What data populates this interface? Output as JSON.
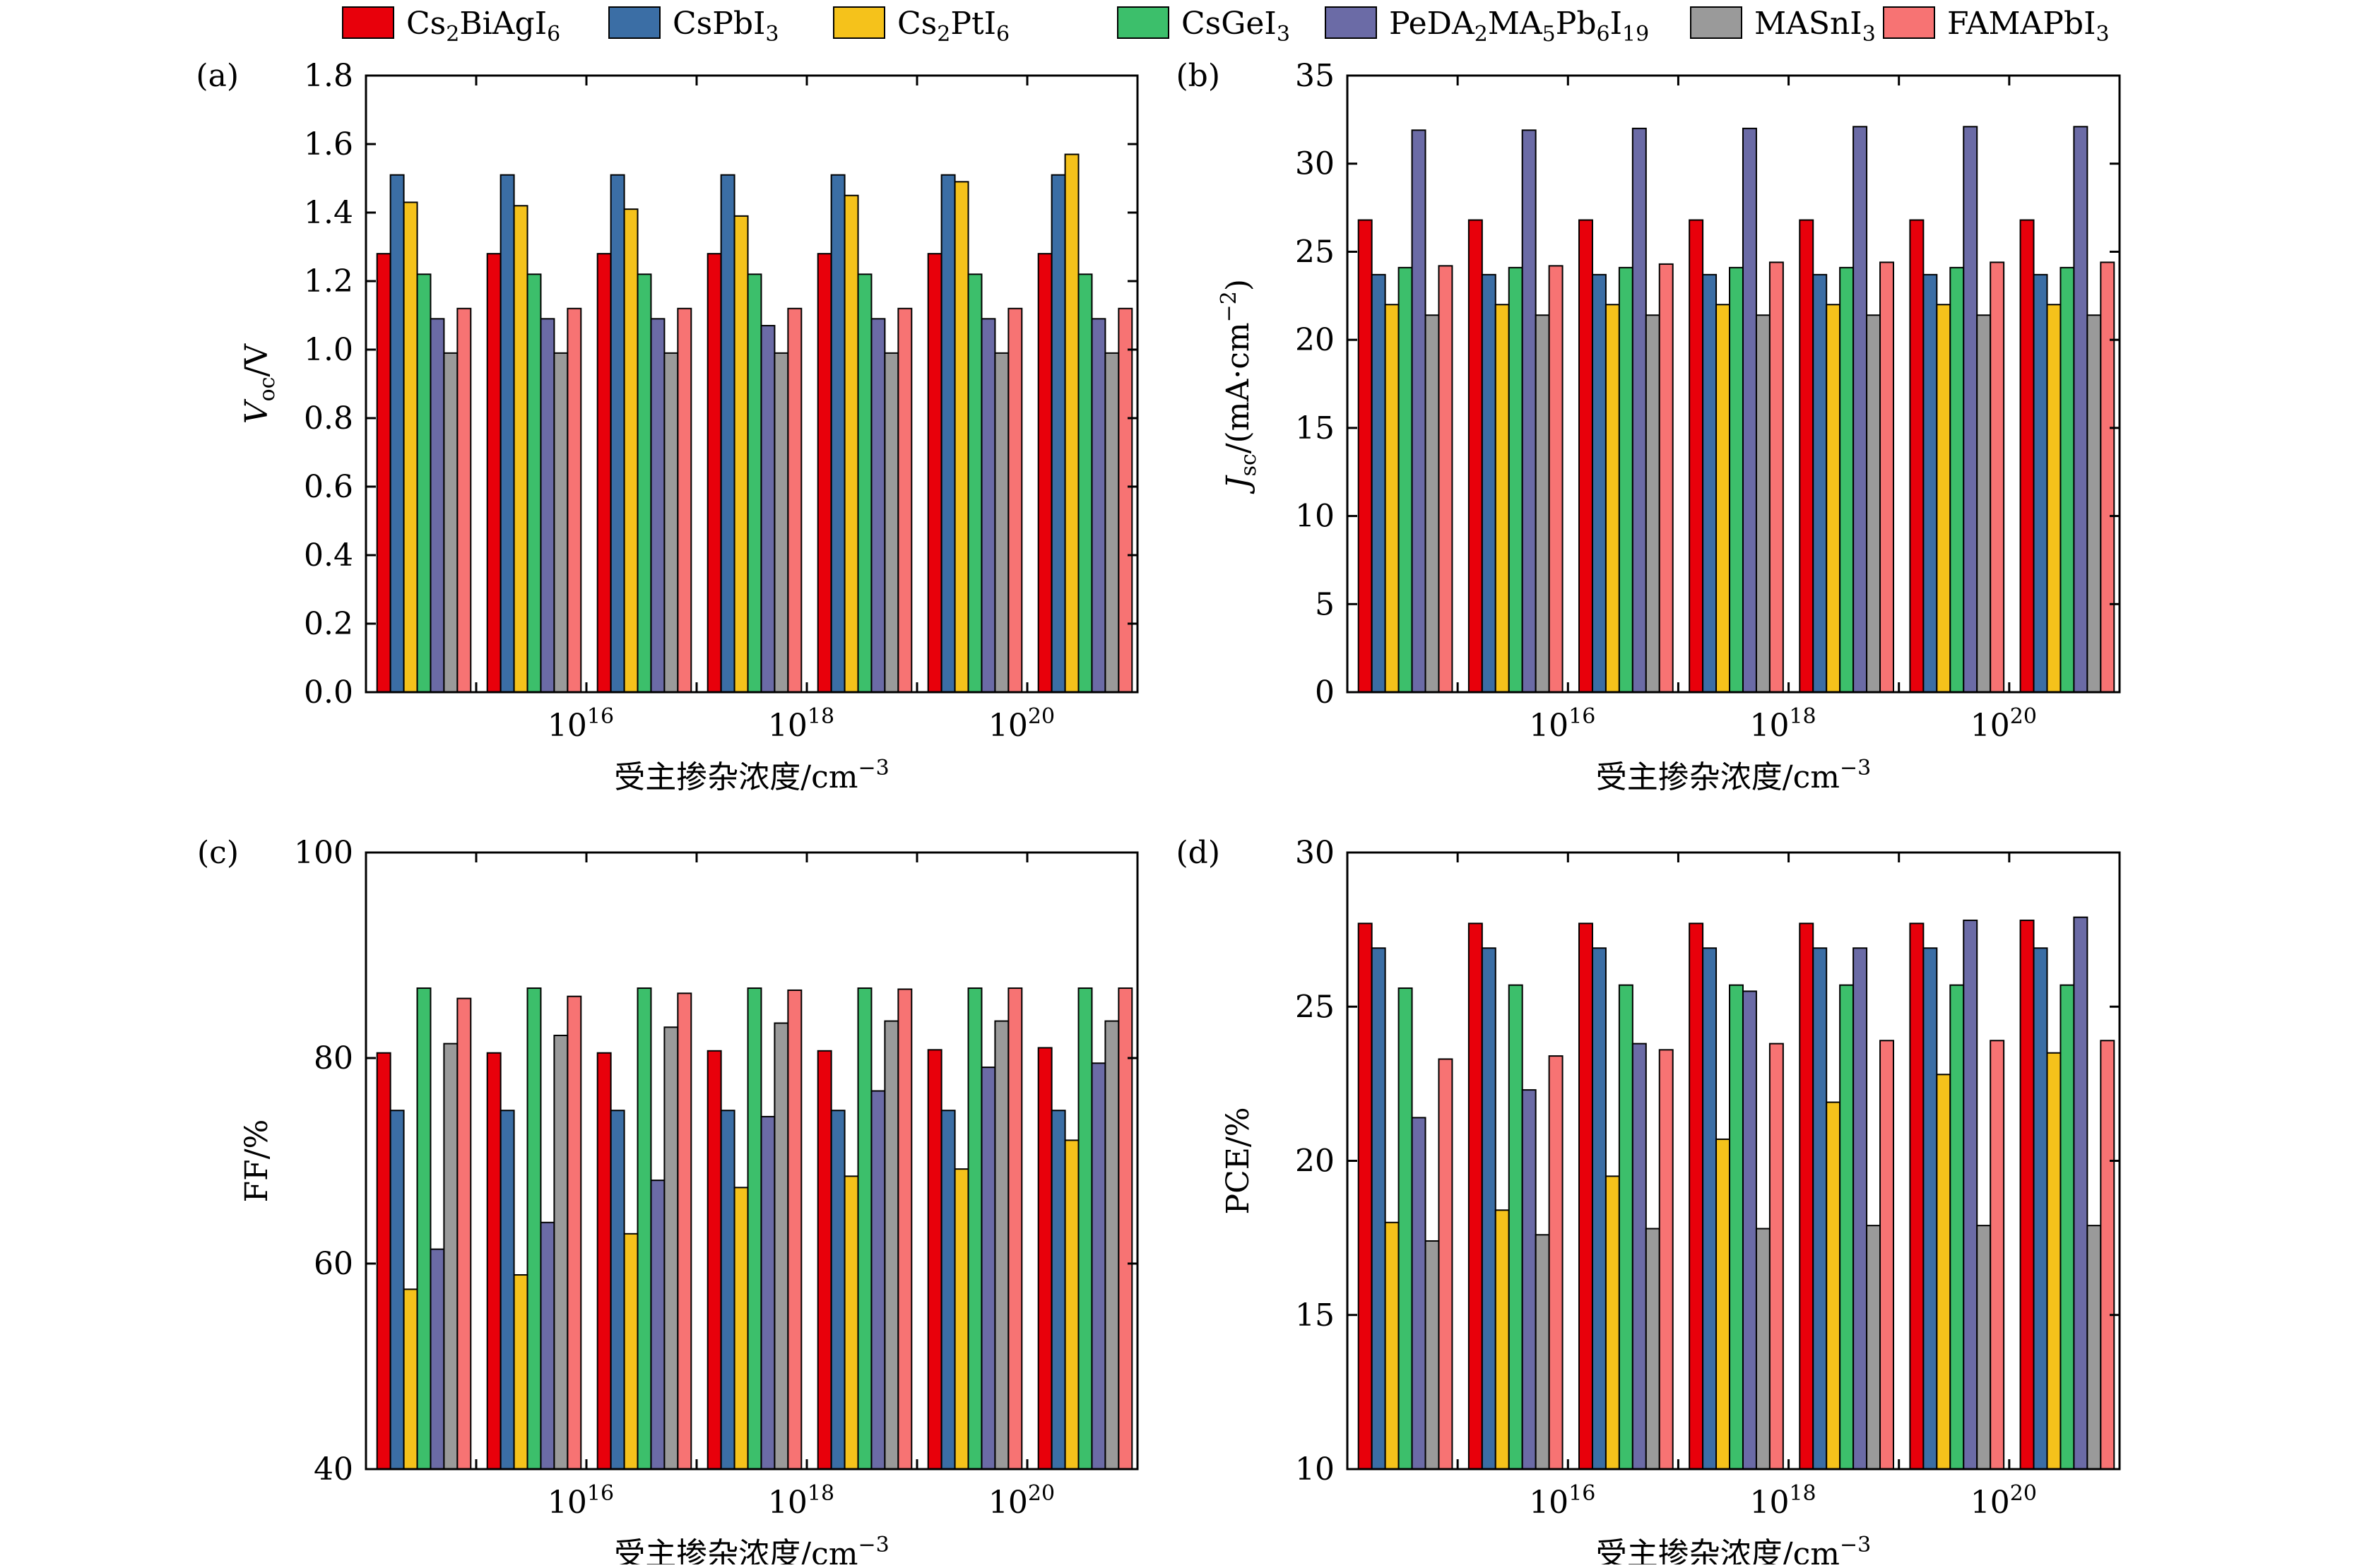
{
  "legend": {
    "placement": "top",
    "entries": [
      {
        "base": "Cs",
        "sub": "2",
        "base2": "BiAgI",
        "sub2": "6"
      },
      {
        "base": "CsPbI",
        "sub": "3"
      },
      {
        "base": "Cs",
        "sub": "2",
        "base2": "PtI",
        "sub2": "6"
      },
      {
        "base": "CsGeI",
        "sub": "3"
      },
      {
        "base": "PeDA",
        "sub": "2",
        "base2": "MA",
        "sub2": "5",
        "base3": "Pb",
        "sub3": "6",
        "base4": "I",
        "sub4": "19"
      },
      {
        "base": "MASnI",
        "sub": "3"
      },
      {
        "base": "FAMAPbI",
        "sub": "3"
      }
    ]
  },
  "colors": [
    "#e8000b",
    "#3b6ea5",
    "#f5c21b",
    "#3cbf6b",
    "#6b6ba6",
    "#9a9a9a",
    "#f77373"
  ],
  "xaxis": {
    "label_main": "受主掺杂浓度/cm",
    "label_sup": "−3",
    "ticks": [
      {
        "base": "10",
        "exp": "16",
        "pos": 1
      },
      {
        "base": "10",
        "exp": "18",
        "pos": 3
      },
      {
        "base": "10",
        "exp": "20",
        "pos": 5
      }
    ]
  },
  "chart_data": [
    {
      "type": "bar",
      "panel": "(a)",
      "ylabel": {
        "main": "V",
        "sub": "oc",
        "rest": "/V"
      },
      "ylim": [
        0,
        1.8
      ],
      "yticks": [
        0,
        0.2,
        0.4,
        0.6,
        0.8,
        1.0,
        1.2,
        1.4,
        1.6,
        1.8
      ],
      "ytick_decimals": 1,
      "groups": 7,
      "series": [
        {
          "values": [
            1.28,
            1.28,
            1.28,
            1.28,
            1.28,
            1.28,
            1.28
          ]
        },
        {
          "values": [
            1.51,
            1.51,
            1.51,
            1.51,
            1.51,
            1.51,
            1.51
          ]
        },
        {
          "values": [
            1.43,
            1.42,
            1.41,
            1.39,
            1.45,
            1.49,
            1.57
          ]
        },
        {
          "values": [
            1.22,
            1.22,
            1.22,
            1.22,
            1.22,
            1.22,
            1.22
          ]
        },
        {
          "values": [
            1.09,
            1.09,
            1.09,
            1.07,
            1.09,
            1.09,
            1.09
          ]
        },
        {
          "values": [
            0.99,
            0.99,
            0.99,
            0.99,
            0.99,
            0.99,
            0.99
          ]
        },
        {
          "values": [
            1.12,
            1.12,
            1.12,
            1.12,
            1.12,
            1.12,
            1.12
          ]
        }
      ]
    },
    {
      "type": "bar",
      "panel": "(b)",
      "ylabel": {
        "main": "J",
        "sub": "sc",
        "rest": "/(mA·cm",
        "sup": "−2",
        "tail": ")"
      },
      "ylim": [
        0,
        35
      ],
      "yticks": [
        0,
        5,
        10,
        15,
        20,
        25,
        30,
        35
      ],
      "ytick_decimals": 0,
      "groups": 7,
      "series": [
        {
          "values": [
            26.8,
            26.8,
            26.8,
            26.8,
            26.8,
            26.8,
            26.8
          ]
        },
        {
          "values": [
            23.7,
            23.7,
            23.7,
            23.7,
            23.7,
            23.7,
            23.7
          ]
        },
        {
          "values": [
            22.0,
            22.0,
            22.0,
            22.0,
            22.0,
            22.0,
            22.0
          ]
        },
        {
          "values": [
            24.1,
            24.1,
            24.1,
            24.1,
            24.1,
            24.1,
            24.1
          ]
        },
        {
          "values": [
            31.9,
            31.9,
            32.0,
            32.0,
            32.1,
            32.1,
            32.1
          ]
        },
        {
          "values": [
            21.4,
            21.4,
            21.4,
            21.4,
            21.4,
            21.4,
            21.4
          ]
        },
        {
          "values": [
            24.2,
            24.2,
            24.3,
            24.4,
            24.4,
            24.4,
            24.4
          ]
        }
      ]
    },
    {
      "type": "bar",
      "panel": "(c)",
      "ylabel": {
        "main": "FF/%"
      },
      "ylim": [
        40,
        100
      ],
      "yticks": [
        40,
        60,
        80,
        100
      ],
      "ytick_decimals": 0,
      "groups": 7,
      "series": [
        {
          "values": [
            80.5,
            80.5,
            80.5,
            80.7,
            80.7,
            80.8,
            81.0
          ]
        },
        {
          "values": [
            74.9,
            74.9,
            74.9,
            74.9,
            74.9,
            74.9,
            74.9
          ]
        },
        {
          "values": [
            57.5,
            58.9,
            62.9,
            67.4,
            68.5,
            69.2,
            72.0
          ]
        },
        {
          "values": [
            86.8,
            86.8,
            86.8,
            86.8,
            86.8,
            86.8,
            86.8
          ]
        },
        {
          "values": [
            61.4,
            64.0,
            68.1,
            74.3,
            76.8,
            79.1,
            79.5
          ]
        },
        {
          "values": [
            81.4,
            82.2,
            83.0,
            83.4,
            83.6,
            83.6,
            83.6
          ]
        },
        {
          "values": [
            85.8,
            86.0,
            86.3,
            86.6,
            86.7,
            86.8,
            86.8
          ]
        }
      ]
    },
    {
      "type": "bar",
      "panel": "(d)",
      "ylabel": {
        "main": "PCE/%"
      },
      "ylim": [
        10,
        30
      ],
      "yticks": [
        10,
        15,
        20,
        25,
        30
      ],
      "ytick_decimals": 0,
      "groups": 7,
      "series": [
        {
          "values": [
            27.7,
            27.7,
            27.7,
            27.7,
            27.7,
            27.7,
            27.8
          ]
        },
        {
          "values": [
            26.9,
            26.9,
            26.9,
            26.9,
            26.9,
            26.9,
            26.9
          ]
        },
        {
          "values": [
            18.0,
            18.4,
            19.5,
            20.7,
            21.9,
            22.8,
            23.5
          ]
        },
        {
          "values": [
            25.6,
            25.7,
            25.7,
            25.7,
            25.7,
            25.7,
            25.7
          ]
        },
        {
          "values": [
            21.4,
            22.3,
            23.8,
            25.5,
            26.9,
            27.8,
            27.9
          ]
        },
        {
          "values": [
            17.4,
            17.6,
            17.8,
            17.8,
            17.9,
            17.9,
            17.9
          ]
        },
        {
          "values": [
            23.3,
            23.4,
            23.6,
            23.8,
            23.9,
            23.9,
            23.9
          ]
        }
      ]
    }
  ]
}
